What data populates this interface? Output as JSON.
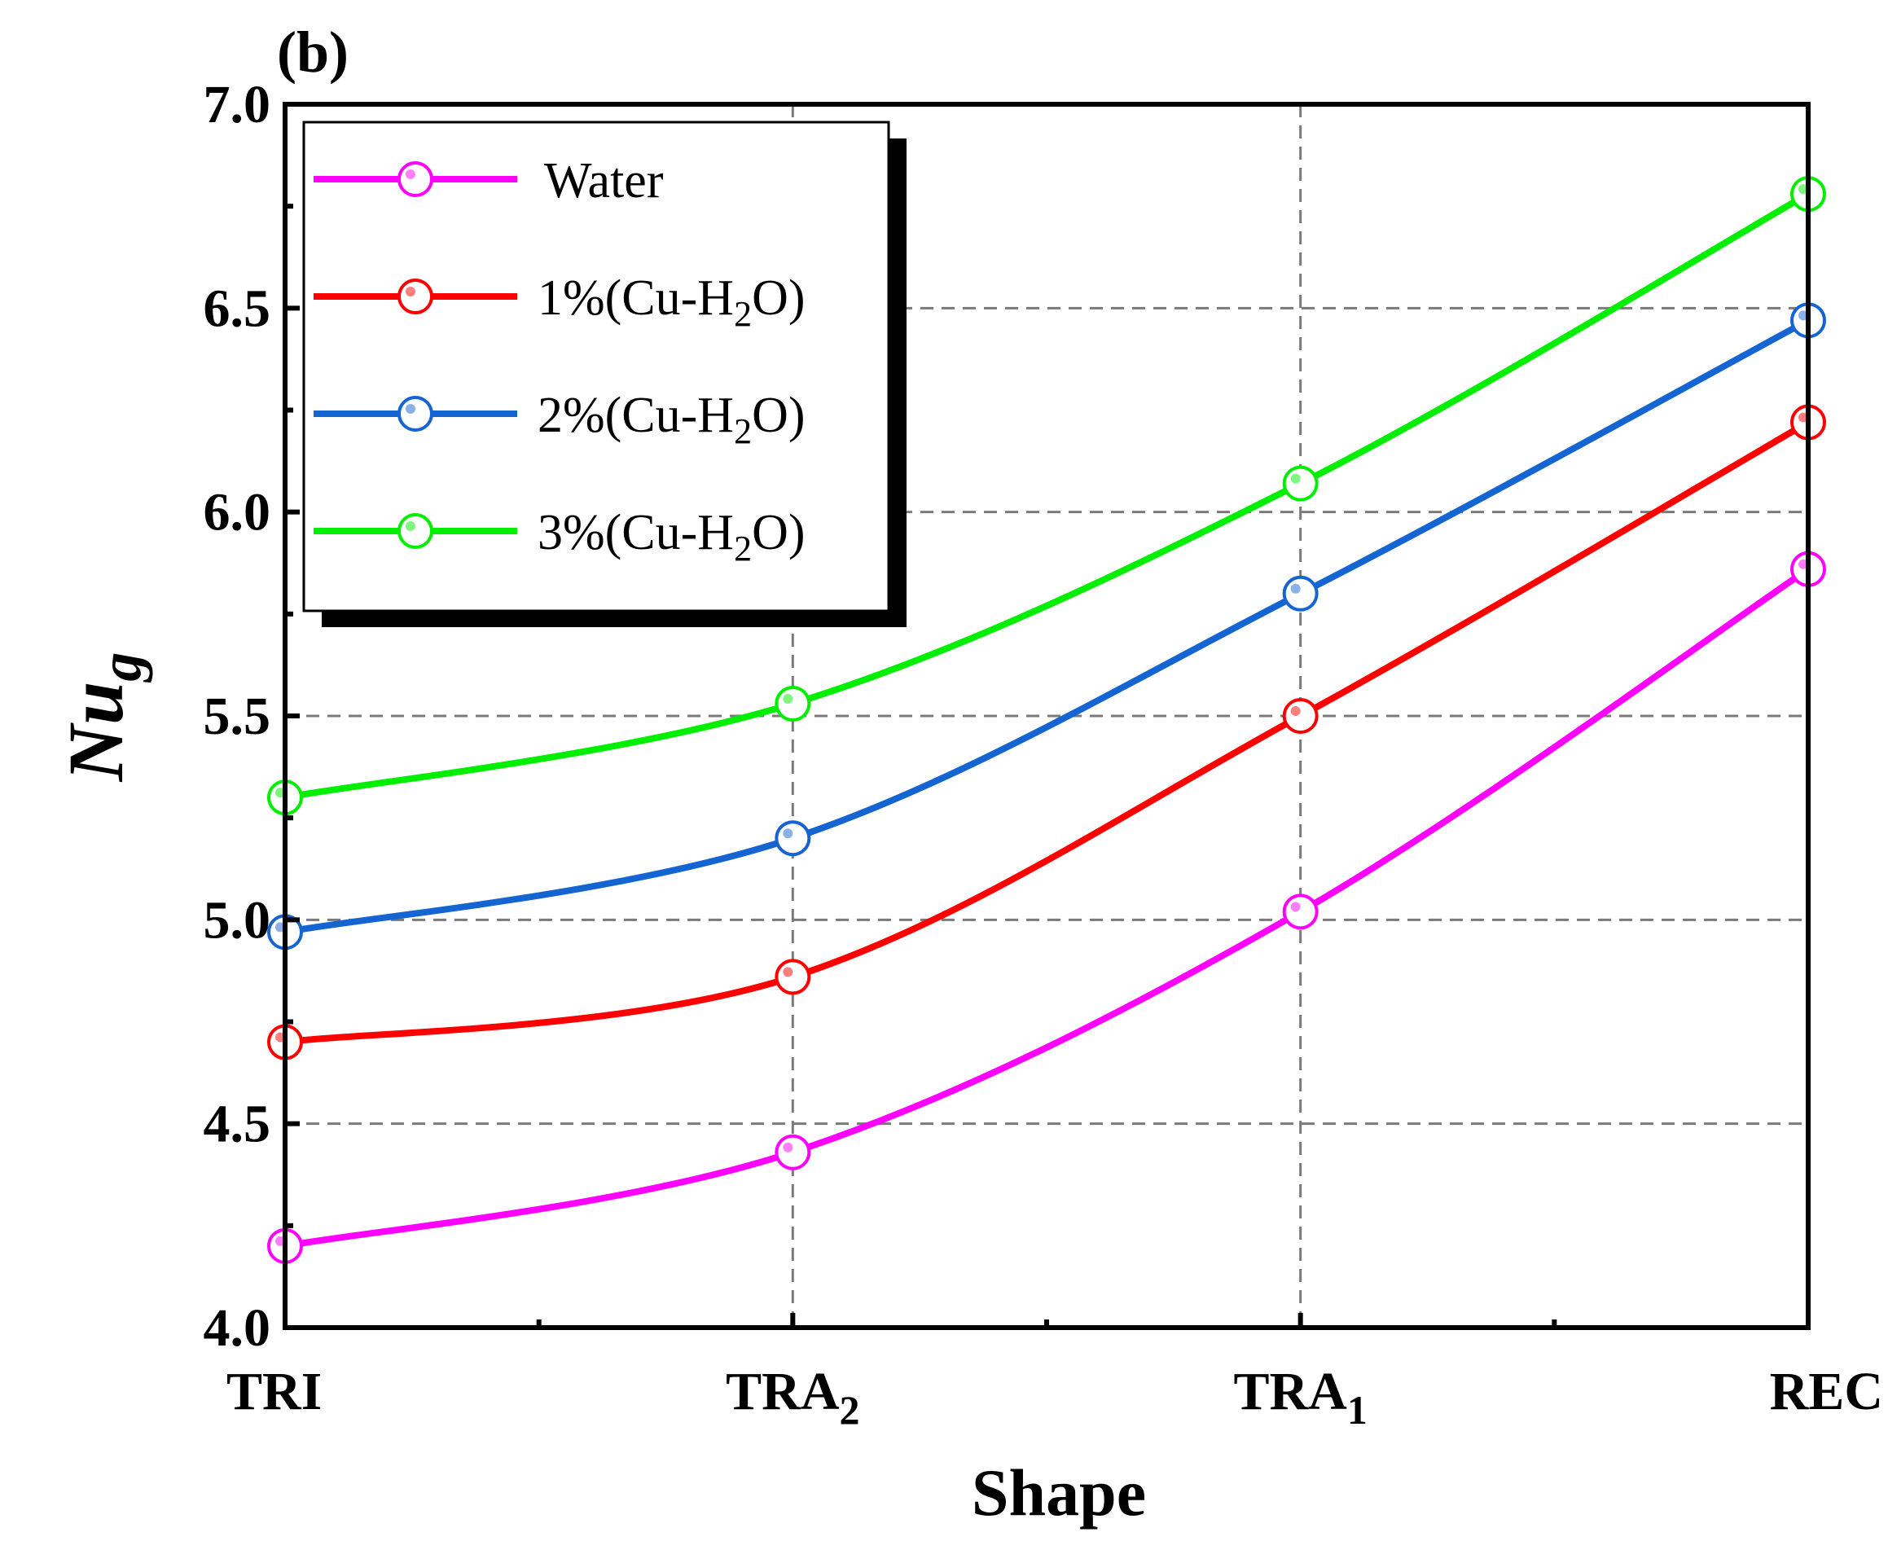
{
  "panel_label": "(b)",
  "chart_data": {
    "type": "line",
    "title": "",
    "xlabel": "Shape",
    "ylabel": "Nu",
    "ylabel_subscript": "g",
    "categories": [
      {
        "main": "TRI",
        "sub": ""
      },
      {
        "main": "TRA",
        "sub": "2"
      },
      {
        "main": "TRA",
        "sub": "1"
      },
      {
        "main": "REC",
        "sub": ""
      }
    ],
    "ylim": [
      4.0,
      7.0
    ],
    "yticks": [
      "4.0",
      "4.5",
      "5.0",
      "5.5",
      "6.0",
      "6.5",
      "7.0"
    ],
    "grid": true,
    "legend_position": "top-left",
    "series": [
      {
        "name": "Water",
        "color": "#ff00ff",
        "values": [
          4.2,
          4.43,
          5.02,
          5.86
        ]
      },
      {
        "name": "1%(Cu-H2O)",
        "color": "#ff0000",
        "values": [
          4.7,
          4.86,
          5.5,
          6.22
        ]
      },
      {
        "name": "2%(Cu-H2O)",
        "color": "#1464d2",
        "values": [
          4.97,
          5.2,
          5.8,
          6.47
        ]
      },
      {
        "name": "3%(Cu-H2O)",
        "color": "#00ee00",
        "values": [
          5.3,
          5.53,
          6.07,
          6.78
        ]
      }
    ],
    "legend_entries": [
      {
        "pre": "Water",
        "sub": "",
        "post": ""
      },
      {
        "pre": "1%(Cu-H",
        "sub": "2",
        "post": "O)"
      },
      {
        "pre": "2%(Cu-H",
        "sub": "2",
        "post": "O)"
      },
      {
        "pre": "3%(Cu-H",
        "sub": "2",
        "post": "O)"
      }
    ]
  }
}
